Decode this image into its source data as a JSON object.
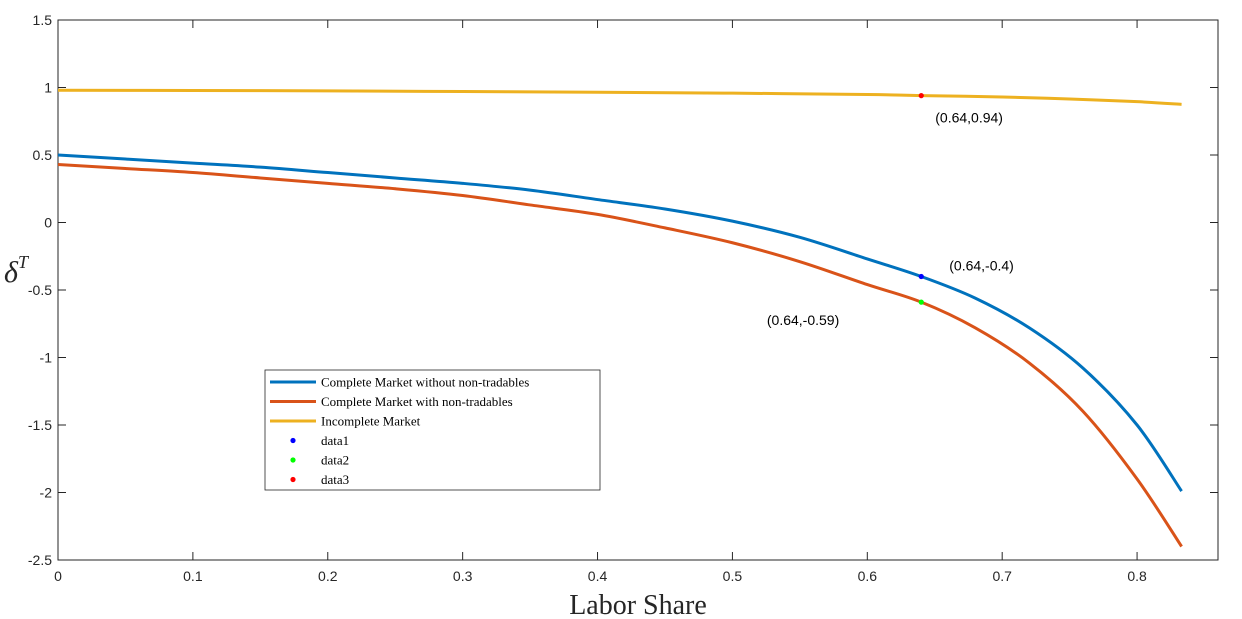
{
  "chart_data": {
    "type": "line",
    "xlabel": "Labor Share",
    "ylabel_base": "δ",
    "ylabel_sup": "T",
    "xlim": [
      0,
      0.86
    ],
    "ylim": [
      -2.5,
      1.5
    ],
    "xticks": [
      0,
      0.1,
      0.2,
      0.3,
      0.4,
      0.5,
      0.6,
      0.7,
      0.8
    ],
    "xtick_labels": [
      "0",
      "0.1",
      "0.2",
      "0.3",
      "0.4",
      "0.5",
      "0.6",
      "0.7",
      "0.8"
    ],
    "yticks": [
      1.5,
      1,
      0.5,
      0,
      -0.5,
      -1,
      -1.5,
      -2,
      -2.5
    ],
    "ytick_labels": [
      "1.5",
      "1",
      "0.5",
      "0",
      "-0.5",
      "-1",
      "-1.5",
      "-2",
      "-2.5"
    ],
    "grid": false,
    "legend_position": "lower-left",
    "series": [
      {
        "name": "Complete Market without non-tradables",
        "color": "#0072BD",
        "x": [
          0,
          0.05,
          0.1,
          0.15,
          0.2,
          0.25,
          0.3,
          0.35,
          0.4,
          0.45,
          0.5,
          0.55,
          0.6,
          0.64,
          0.68,
          0.72,
          0.76,
          0.8,
          0.833
        ],
        "y": [
          0.5,
          0.47,
          0.44,
          0.41,
          0.37,
          0.33,
          0.29,
          0.24,
          0.17,
          0.1,
          0.01,
          -0.11,
          -0.27,
          -0.4,
          -0.56,
          -0.78,
          -1.08,
          -1.5,
          -1.99
        ]
      },
      {
        "name": "Complete Market with non-tradables",
        "color": "#D95319",
        "x": [
          0,
          0.05,
          0.1,
          0.15,
          0.2,
          0.25,
          0.3,
          0.35,
          0.4,
          0.45,
          0.5,
          0.55,
          0.6,
          0.64,
          0.68,
          0.72,
          0.76,
          0.8,
          0.833
        ],
        "y": [
          0.43,
          0.4,
          0.37,
          0.33,
          0.29,
          0.25,
          0.2,
          0.13,
          0.06,
          -0.04,
          -0.15,
          -0.29,
          -0.46,
          -0.59,
          -0.78,
          -1.04,
          -1.4,
          -1.9,
          -2.4
        ]
      },
      {
        "name": "Incomplete Market",
        "color": "#EDB120",
        "x": [
          0,
          0.1,
          0.2,
          0.3,
          0.4,
          0.5,
          0.6,
          0.64,
          0.7,
          0.75,
          0.8,
          0.833
        ],
        "y": [
          0.98,
          0.978,
          0.975,
          0.97,
          0.965,
          0.958,
          0.948,
          0.94,
          0.93,
          0.915,
          0.895,
          0.875
        ]
      }
    ],
    "points": [
      {
        "name": "data1",
        "x": 0.64,
        "y": -0.4,
        "color": "#0000FF",
        "label": "(0.64,-0.4)",
        "label_side": "right-above"
      },
      {
        "name": "data2",
        "x": 0.64,
        "y": -0.59,
        "color": "#00FF00",
        "label": "(0.64,-0.59)",
        "label_side": "left-below"
      },
      {
        "name": "data3",
        "x": 0.64,
        "y": 0.94,
        "color": "#FF0000",
        "label": "(0.64,0.94)",
        "label_side": "right-below"
      }
    ]
  }
}
